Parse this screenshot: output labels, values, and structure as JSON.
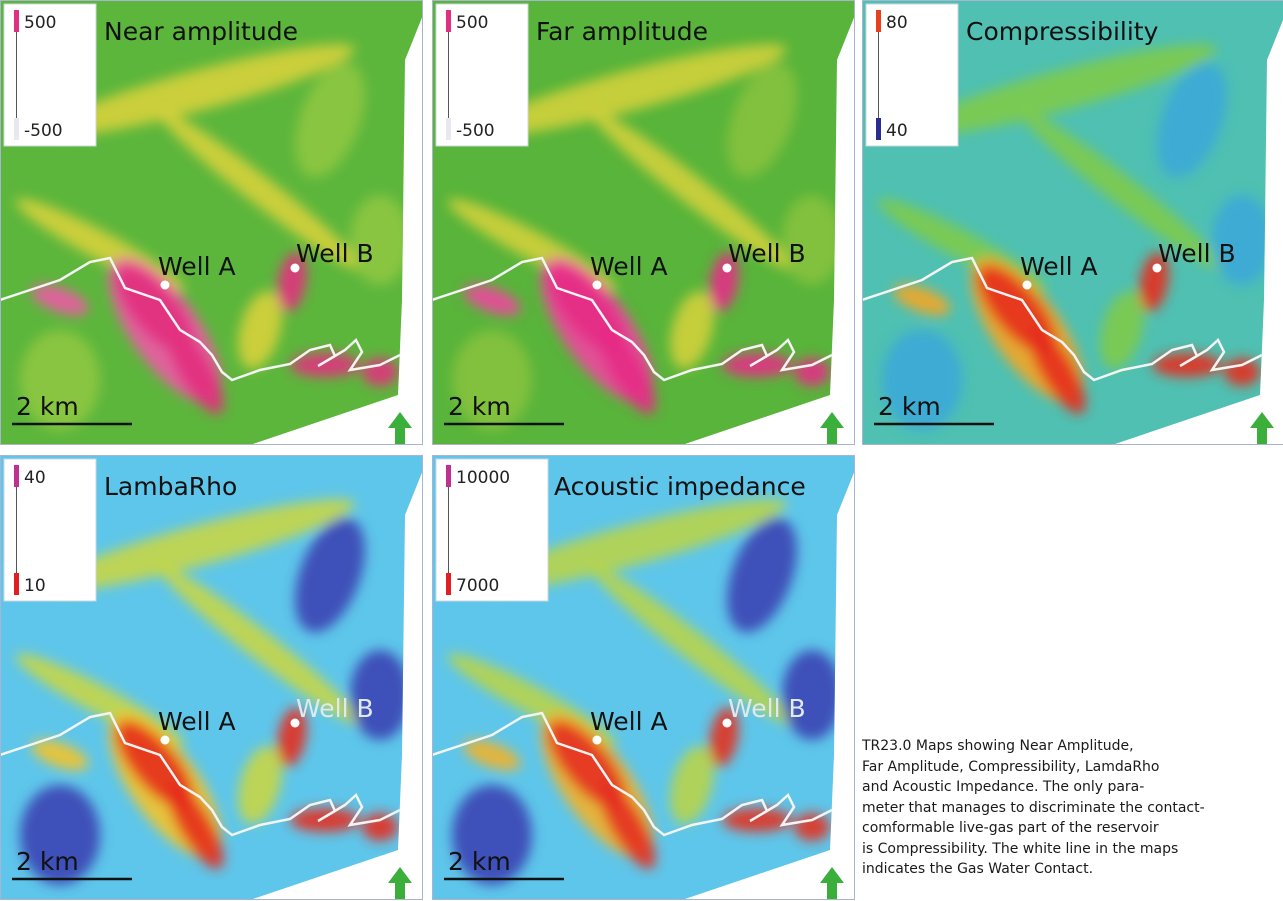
{
  "panels": [
    {
      "title": "Near amplitude",
      "legend": {
        "max": "500",
        "min": "-500"
      },
      "wells": [
        "Well A",
        "Well B"
      ],
      "scale": "2 km"
    },
    {
      "title": "Far amplitude",
      "legend": {
        "max": "500",
        "min": "-500"
      },
      "wells": [
        "Well A",
        "Well B"
      ],
      "scale": "2 km"
    },
    {
      "title": "Compressibility",
      "legend": {
        "max": "80",
        "min": "40"
      },
      "wells": [
        "Well A",
        "Well B"
      ],
      "scale": "2 km"
    },
    {
      "title": "LambaRho",
      "legend": {
        "max": "40",
        "min": "10"
      },
      "wells": [
        "Well A",
        "Well B"
      ],
      "scale": "2 km"
    },
    {
      "title": "Acoustic impedance",
      "legend": {
        "max": "10000",
        "min": "7000"
      },
      "wells": [
        "Well A",
        "Well B"
      ],
      "scale": "2 km"
    }
  ],
  "caption": [
    "TR23.0 Maps showing Near Amplitude,",
    "Far Amplitude, Compressibility, LamdaRho",
    "and Acoustic Impedance. The only para-",
    "meter that manages to discriminate the contact-",
    "comformable live-gas part of the reservoir",
    "is Compressibility. The white line in the maps",
    "indicates the Gas Water Contact."
  ]
}
